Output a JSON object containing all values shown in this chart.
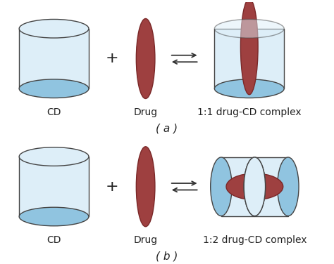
{
  "background_color": "#ffffff",
  "cd_light": "#ddeef8",
  "cd_dark": "#90c4e0",
  "cd_edge": "#444444",
  "drug_fill": "#9e4040",
  "drug_edge": "#7a2828",
  "label_color": "#222222",
  "lfs": 10,
  "title_a": "( a )",
  "title_b": "( b )",
  "label_cd": "CD",
  "label_drug": "Drug",
  "label_11": "1:1 drug-CD complex",
  "label_12": "1:2 drug-CD complex"
}
